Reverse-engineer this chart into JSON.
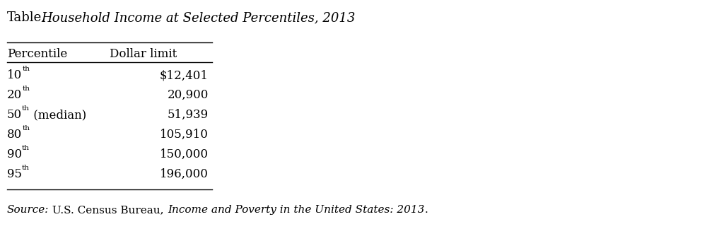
{
  "title_prefix": "Table.",
  "title_italic": "Household Income at Selected Percentiles, 2013",
  "col1_header": "Percentile",
  "col2_header": "Dollar limit",
  "rows": [
    {
      "percentile_base": "10",
      "superscript": "th",
      "suffix": "",
      "value": "$12,401"
    },
    {
      "percentile_base": "20",
      "superscript": "th",
      "suffix": "",
      "value": "20,900"
    },
    {
      "percentile_base": "50",
      "superscript": "th",
      "suffix": " (median)",
      "value": "51,939"
    },
    {
      "percentile_base": "80",
      "superscript": "th",
      "suffix": "",
      "value": "105,910"
    },
    {
      "percentile_base": "90",
      "superscript": "th",
      "suffix": "",
      "value": "150,000"
    },
    {
      "percentile_base": "95",
      "superscript": "th",
      "suffix": "",
      "value": "196,000"
    }
  ],
  "source_italic1": "Source:",
  "source_normal": " U.S. Census Bureau, ",
  "source_italic2": "Income and Poverty in the United States: 2013",
  "source_end": ".",
  "bg_color": "#ffffff",
  "text_color": "#000000"
}
